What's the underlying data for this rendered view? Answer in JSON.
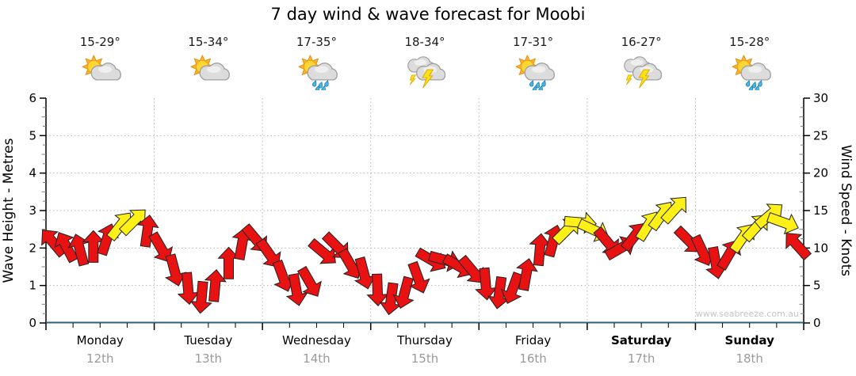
{
  "title": "7 day wind & wave forecast for Moobi",
  "watermark": "www.seabreeze.com.au",
  "days": [
    {
      "name": "Monday",
      "date": "12th",
      "temps": "15-29°",
      "icon": "partly-cloudy",
      "bold": false
    },
    {
      "name": "Tuesday",
      "date": "13th",
      "temps": "15-34°",
      "icon": "partly-cloudy",
      "bold": false
    },
    {
      "name": "Wednesday",
      "date": "14th",
      "temps": "17-35°",
      "icon": "rain",
      "bold": false
    },
    {
      "name": "Thursday",
      "date": "15th",
      "temps": "18-34°",
      "icon": "storm",
      "bold": false
    },
    {
      "name": "Friday",
      "date": "16th",
      "temps": "17-31°",
      "icon": "rain",
      "bold": false
    },
    {
      "name": "Saturday",
      "date": "17th",
      "temps": "16-27°",
      "icon": "storm",
      "bold": true
    },
    {
      "name": "Sunday",
      "date": "18th",
      "temps": "15-28°",
      "icon": "rain",
      "bold": true
    }
  ],
  "axes": {
    "left": {
      "label": "Wave Height - Metres",
      "ticks": [
        0,
        1,
        2,
        3,
        4,
        5,
        6
      ],
      "range": [
        0,
        6
      ]
    },
    "right": {
      "label": "Wind Speed - Knots",
      "ticks": [
        0,
        5,
        10,
        15,
        20,
        25,
        30
      ],
      "range": [
        0,
        30
      ]
    }
  },
  "colors": {
    "arrow_red": "#e81212",
    "arrow_yellow": "#fff017",
    "arrow_outline": "#222222",
    "axis_bottom": "#2b607e",
    "grid": "#b5b5b5",
    "date_text": "#9a9a9a",
    "watermark": "#c5c5c5"
  },
  "chart_data": {
    "type": "scatter",
    "marker": "wind-arrow",
    "title": "7 day wind & wave forecast for Moobi",
    "categories": [
      "Monday 12th",
      "Tuesday 13th",
      "Wednesday 14th",
      "Thursday 15th",
      "Friday 16th",
      "Saturday 17th",
      "Sunday 18th"
    ],
    "points_per_day": 8,
    "ylabel_left": "Wave Height - Metres",
    "ylabel_right": "Wind Speed - Knots",
    "ylim_left": [
      0,
      6
    ],
    "ylim_right": [
      0,
      30
    ],
    "grid": "dotted, horizontal at 1-5 m (5-25 kt), vertical at day boundaries",
    "legend": "none; arrow colour encodes wind band: red < ~12 kt, yellow >= ~12 kt; arrow rotation = wind direction",
    "wave_height_m": {
      "series": "flat",
      "value": 0
    },
    "wind_knots_dir_color": [
      [
        10.8,
        -40,
        "r"
      ],
      [
        10.2,
        -28,
        "r"
      ],
      [
        9.8,
        -15,
        "r"
      ],
      [
        10.2,
        0,
        "r"
      ],
      [
        11.2,
        18,
        "r"
      ],
      [
        13.0,
        38,
        "y"
      ],
      [
        13.6,
        45,
        "y"
      ],
      [
        12.3,
        8,
        "r"
      ],
      [
        10.0,
        150,
        "r"
      ],
      [
        7.0,
        165,
        "r"
      ],
      [
        4.6,
        175,
        "r"
      ],
      [
        3.4,
        185,
        "r"
      ],
      [
        5.0,
        5,
        "r"
      ],
      [
        8.0,
        0,
        "r"
      ],
      [
        10.6,
        10,
        "r"
      ],
      [
        11.2,
        140,
        "r"
      ],
      [
        9.2,
        145,
        "r"
      ],
      [
        6.2,
        160,
        "r"
      ],
      [
        4.4,
        170,
        "r"
      ],
      [
        5.4,
        150,
        "r"
      ],
      [
        9.4,
        130,
        "r"
      ],
      [
        10.2,
        135,
        "r"
      ],
      [
        7.8,
        150,
        "r"
      ],
      [
        6.6,
        165,
        "r"
      ],
      [
        4.4,
        178,
        "r"
      ],
      [
        3.2,
        188,
        "r"
      ],
      [
        4.0,
        195,
        "r"
      ],
      [
        6.0,
        160,
        "r"
      ],
      [
        8.4,
        120,
        "r"
      ],
      [
        8.4,
        105,
        "r"
      ],
      [
        7.6,
        120,
        "r"
      ],
      [
        7.0,
        140,
        "r"
      ],
      [
        5.2,
        175,
        "r"
      ],
      [
        4.0,
        188,
        "r"
      ],
      [
        4.6,
        200,
        "r"
      ],
      [
        6.5,
        10,
        "r"
      ],
      [
        9.8,
        5,
        "r"
      ],
      [
        11.0,
        15,
        "r"
      ],
      [
        12.4,
        45,
        "y"
      ],
      [
        13.4,
        95,
        "y"
      ],
      [
        12.4,
        115,
        "y"
      ],
      [
        10.8,
        140,
        "r"
      ],
      [
        10.0,
        60,
        "r"
      ],
      [
        11.6,
        38,
        "r"
      ],
      [
        13.0,
        32,
        "y"
      ],
      [
        14.4,
        36,
        "y"
      ],
      [
        15.2,
        42,
        "y"
      ],
      [
        11.0,
        135,
        "r"
      ],
      [
        9.6,
        155,
        "r"
      ],
      [
        8.0,
        170,
        "r"
      ],
      [
        9.2,
        30,
        "r"
      ],
      [
        11.4,
        35,
        "y"
      ],
      [
        12.8,
        42,
        "y"
      ],
      [
        14.4,
        50,
        "y"
      ],
      [
        13.4,
        110,
        "y"
      ],
      [
        10.4,
        -42,
        "r"
      ]
    ]
  }
}
